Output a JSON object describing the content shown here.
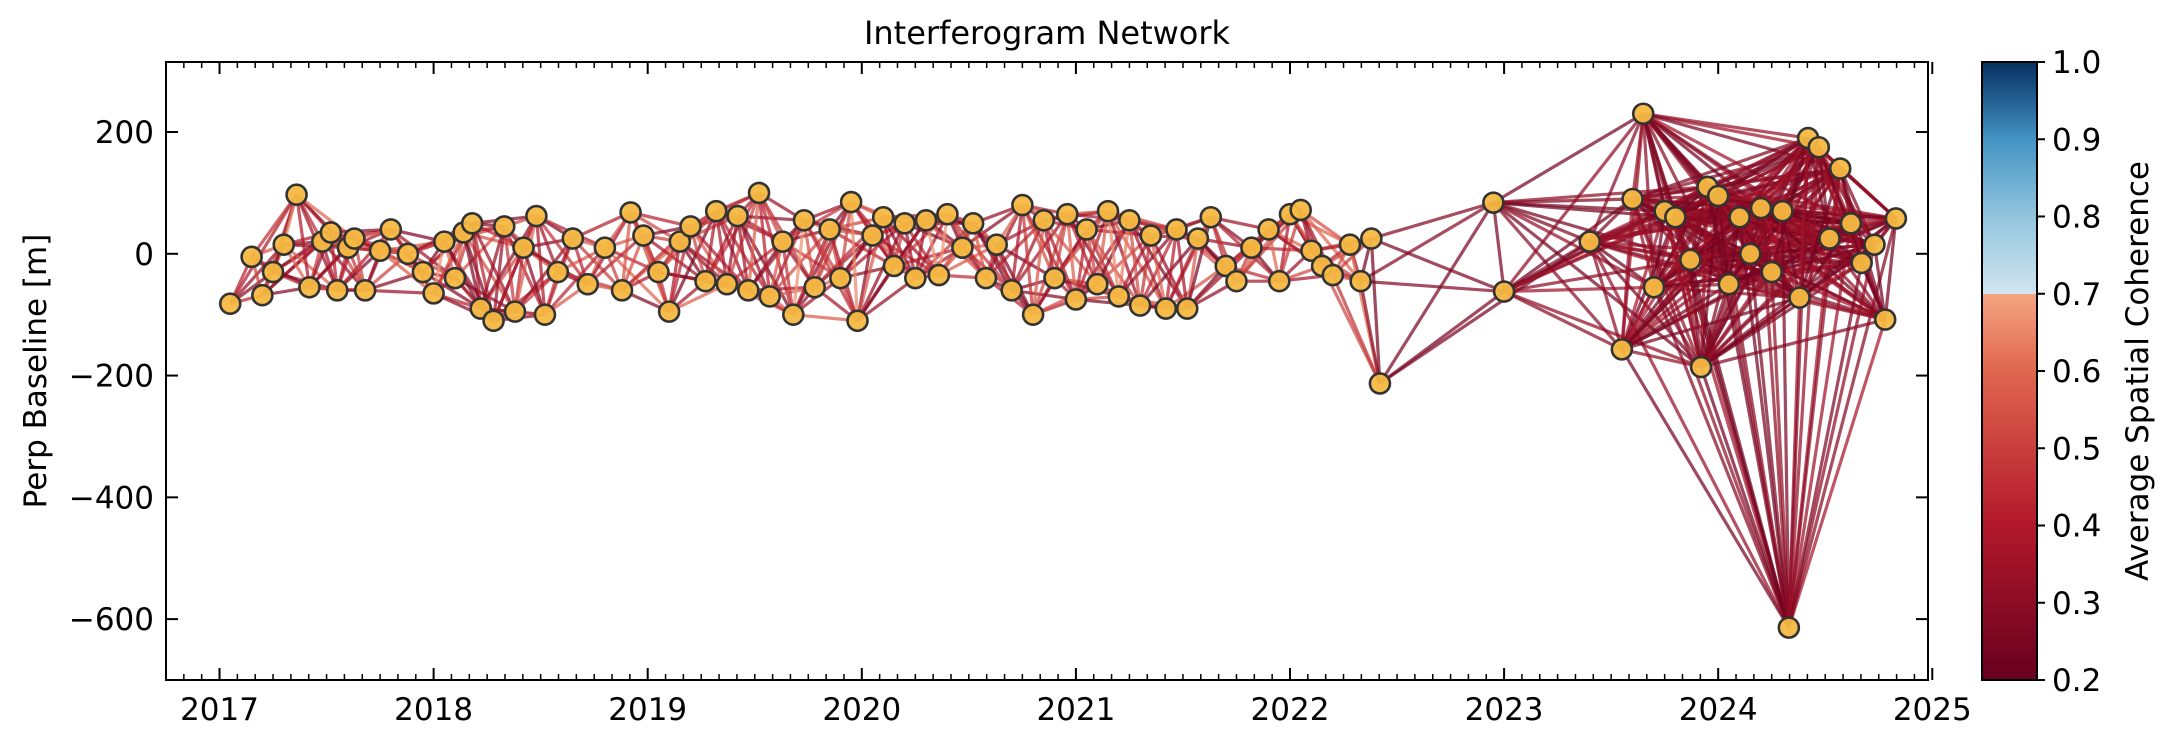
{
  "chart_data": {
    "type": "scatter",
    "title": "Interferogram Network",
    "xlabel": "",
    "ylabel": "Perp Baseline [m]",
    "xlim": [
      2016.75,
      2024.98
    ],
    "ylim": [
      -700,
      315
    ],
    "x_ticks": [
      "2017",
      "2018",
      "2019",
      "2020",
      "2021",
      "2022",
      "2023",
      "2024",
      "2025"
    ],
    "y_ticks": [
      200,
      0,
      -200,
      -400,
      -600
    ],
    "y_tick_labels": [
      "200",
      "0",
      "−200",
      "−400",
      "−600"
    ],
    "grid": false,
    "marker_color": "#f5b942",
    "marker_edge_color": "#333333",
    "colorbar": {
      "label": "Average Spatial Coherence",
      "range": [
        0.2,
        1.0
      ],
      "ticks": [
        "1.0",
        "0.9",
        "0.8",
        "0.7",
        "0.6",
        "0.5",
        "0.4",
        "0.3",
        "0.2"
      ],
      "colormap": "RdBu",
      "clip_value": 0.7
    },
    "acquisitions": [
      {
        "x": 2017.05,
        "y": -82
      },
      {
        "x": 2017.15,
        "y": -5
      },
      {
        "x": 2017.2,
        "y": -68
      },
      {
        "x": 2017.25,
        "y": -30
      },
      {
        "x": 2017.3,
        "y": 15
      },
      {
        "x": 2017.36,
        "y": 97
      },
      {
        "x": 2017.42,
        "y": -55
      },
      {
        "x": 2017.48,
        "y": 20
      },
      {
        "x": 2017.52,
        "y": 35
      },
      {
        "x": 2017.55,
        "y": -60
      },
      {
        "x": 2017.6,
        "y": 10
      },
      {
        "x": 2017.63,
        "y": 25
      },
      {
        "x": 2017.68,
        "y": -60
      },
      {
        "x": 2017.75,
        "y": 5
      },
      {
        "x": 2017.8,
        "y": 40
      },
      {
        "x": 2017.88,
        "y": 0
      },
      {
        "x": 2017.95,
        "y": -30
      },
      {
        "x": 2018.0,
        "y": -65
      },
      {
        "x": 2018.05,
        "y": 20
      },
      {
        "x": 2018.1,
        "y": -40
      },
      {
        "x": 2018.14,
        "y": 35
      },
      {
        "x": 2018.18,
        "y": 50
      },
      {
        "x": 2018.22,
        "y": -90
      },
      {
        "x": 2018.28,
        "y": -110
      },
      {
        "x": 2018.33,
        "y": 45
      },
      {
        "x": 2018.38,
        "y": -95
      },
      {
        "x": 2018.42,
        "y": 10
      },
      {
        "x": 2018.48,
        "y": 62
      },
      {
        "x": 2018.52,
        "y": -100
      },
      {
        "x": 2018.58,
        "y": -30
      },
      {
        "x": 2018.65,
        "y": 25
      },
      {
        "x": 2018.72,
        "y": -50
      },
      {
        "x": 2018.8,
        "y": 10
      },
      {
        "x": 2018.88,
        "y": -60
      },
      {
        "x": 2018.92,
        "y": 68
      },
      {
        "x": 2018.98,
        "y": 30
      },
      {
        "x": 2019.05,
        "y": -30
      },
      {
        "x": 2019.1,
        "y": -95
      },
      {
        "x": 2019.15,
        "y": 20
      },
      {
        "x": 2019.2,
        "y": 45
      },
      {
        "x": 2019.27,
        "y": -45
      },
      {
        "x": 2019.32,
        "y": 70
      },
      {
        "x": 2019.37,
        "y": -50
      },
      {
        "x": 2019.42,
        "y": 62
      },
      {
        "x": 2019.47,
        "y": -60
      },
      {
        "x": 2019.52,
        "y": 100
      },
      {
        "x": 2019.57,
        "y": -70
      },
      {
        "x": 2019.63,
        "y": 20
      },
      {
        "x": 2019.68,
        "y": -100
      },
      {
        "x": 2019.73,
        "y": 55
      },
      {
        "x": 2019.78,
        "y": -55
      },
      {
        "x": 2019.85,
        "y": 40
      },
      {
        "x": 2019.9,
        "y": -40
      },
      {
        "x": 2019.95,
        "y": 85
      },
      {
        "x": 2019.98,
        "y": -110
      },
      {
        "x": 2020.05,
        "y": 30
      },
      {
        "x": 2020.1,
        "y": 60
      },
      {
        "x": 2020.15,
        "y": -20
      },
      {
        "x": 2020.2,
        "y": 50
      },
      {
        "x": 2020.25,
        "y": -40
      },
      {
        "x": 2020.3,
        "y": 55
      },
      {
        "x": 2020.36,
        "y": -35
      },
      {
        "x": 2020.4,
        "y": 65
      },
      {
        "x": 2020.47,
        "y": 10
      },
      {
        "x": 2020.52,
        "y": 50
      },
      {
        "x": 2020.58,
        "y": -40
      },
      {
        "x": 2020.63,
        "y": 15
      },
      {
        "x": 2020.7,
        "y": -60
      },
      {
        "x": 2020.75,
        "y": 80
      },
      {
        "x": 2020.8,
        "y": -100
      },
      {
        "x": 2020.85,
        "y": 55
      },
      {
        "x": 2020.9,
        "y": -40
      },
      {
        "x": 2020.96,
        "y": 65
      },
      {
        "x": 2021.0,
        "y": -75
      },
      {
        "x": 2021.05,
        "y": 40
      },
      {
        "x": 2021.1,
        "y": -50
      },
      {
        "x": 2021.15,
        "y": 70
      },
      {
        "x": 2021.2,
        "y": -70
      },
      {
        "x": 2021.25,
        "y": 55
      },
      {
        "x": 2021.3,
        "y": -85
      },
      {
        "x": 2021.35,
        "y": 30
      },
      {
        "x": 2021.42,
        "y": -90
      },
      {
        "x": 2021.47,
        "y": 40
      },
      {
        "x": 2021.52,
        "y": -90
      },
      {
        "x": 2021.57,
        "y": 25
      },
      {
        "x": 2021.63,
        "y": 60
      },
      {
        "x": 2021.7,
        "y": -20
      },
      {
        "x": 2021.75,
        "y": -45
      },
      {
        "x": 2021.82,
        "y": 10
      },
      {
        "x": 2021.9,
        "y": 40
      },
      {
        "x": 2021.95,
        "y": -45
      },
      {
        "x": 2022.0,
        "y": 65
      },
      {
        "x": 2022.05,
        "y": 72
      },
      {
        "x": 2022.1,
        "y": 5
      },
      {
        "x": 2022.15,
        "y": -20
      },
      {
        "x": 2022.2,
        "y": -35
      },
      {
        "x": 2022.28,
        "y": 15
      },
      {
        "x": 2022.33,
        "y": -45
      },
      {
        "x": 2022.38,
        "y": 25
      },
      {
        "x": 2022.42,
        "y": -213
      },
      {
        "x": 2022.95,
        "y": 84
      },
      {
        "x": 2023.0,
        "y": -62
      },
      {
        "x": 2023.4,
        "y": 20
      },
      {
        "x": 2023.55,
        "y": -157
      },
      {
        "x": 2023.6,
        "y": 90
      },
      {
        "x": 2023.65,
        "y": 230
      },
      {
        "x": 2023.7,
        "y": -55
      },
      {
        "x": 2023.75,
        "y": 70
      },
      {
        "x": 2023.8,
        "y": 60
      },
      {
        "x": 2023.87,
        "y": -10
      },
      {
        "x": 2023.92,
        "y": -186
      },
      {
        "x": 2023.95,
        "y": 110
      },
      {
        "x": 2024.0,
        "y": 95
      },
      {
        "x": 2024.05,
        "y": -50
      },
      {
        "x": 2024.1,
        "y": 60
      },
      {
        "x": 2024.15,
        "y": 0
      },
      {
        "x": 2024.2,
        "y": 75
      },
      {
        "x": 2024.25,
        "y": -30
      },
      {
        "x": 2024.3,
        "y": 70
      },
      {
        "x": 2024.33,
        "y": -614
      },
      {
        "x": 2024.38,
        "y": -72
      },
      {
        "x": 2024.42,
        "y": 190
      },
      {
        "x": 2024.47,
        "y": 175
      },
      {
        "x": 2024.52,
        "y": 25
      },
      {
        "x": 2024.57,
        "y": 140
      },
      {
        "x": 2024.62,
        "y": 50
      },
      {
        "x": 2024.67,
        "y": -15
      },
      {
        "x": 2024.73,
        "y": 15
      },
      {
        "x": 2024.78,
        "y": -108
      },
      {
        "x": 2024.83,
        "y": 58
      }
    ]
  }
}
